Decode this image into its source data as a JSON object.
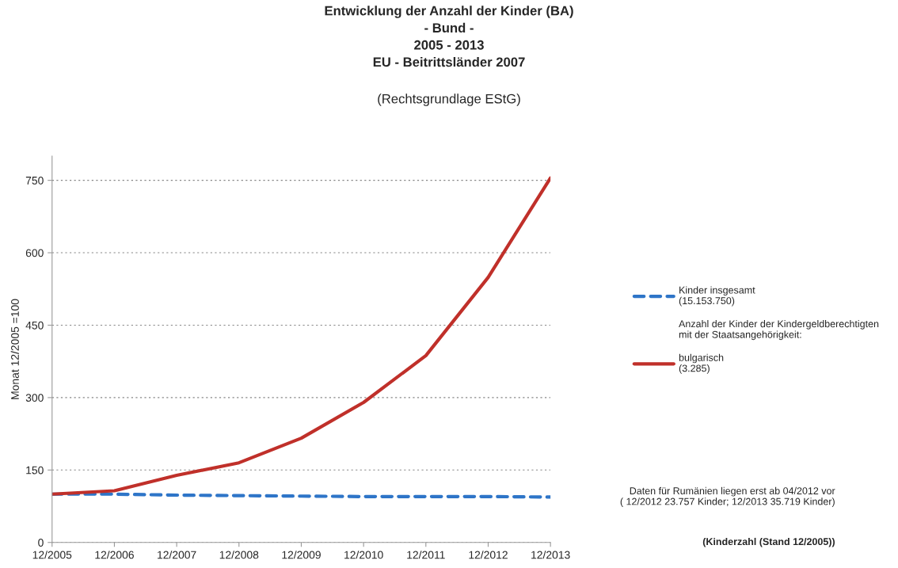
{
  "chart_data": {
    "type": "line",
    "title": "Entwicklung der Anzahl der Kinder (BA)\n- Bund -\n2005 - 2013\nEU - Beitrittsländer 2007",
    "subtitle": "(Rechtsgrundlage EStG)",
    "ylabel": "Monat 12/2005 =100",
    "categories": [
      "12/2005",
      "12/2006",
      "12/2007",
      "12/2008",
      "12/2009",
      "12/2010",
      "12/2011",
      "12/2012",
      "12/2013"
    ],
    "series": [
      {
        "name": "Kinder insgesamt\n(15.153.750)",
        "color": "#2e75c8",
        "line_style": "dashed",
        "values": [
          100,
          100,
          98,
          97,
          96,
          95,
          95,
          95,
          94
        ]
      },
      {
        "name": "bulgarisch\n(3.285)",
        "color": "#c0302a",
        "line_style": "solid",
        "values": [
          100,
          107,
          139,
          165,
          216,
          290,
          387,
          549,
          755
        ]
      }
    ],
    "ylim": [
      0,
      800
    ],
    "yticks": [
      0,
      150,
      300,
      450,
      600,
      750
    ],
    "grid": "y",
    "legend": "right",
    "marker": "none",
    "annotations": [
      "Anzahl der Kinder der Kindergeldberechtigten\nmit der Staatsangehörigkeit:",
      "Daten für Rumänien liegen erst ab 04/2012 vor\n( 12/2012 23.757 Kinder; 12/2013 35.719 Kinder)",
      "(Kinderzahl (Stand 12/2005))"
    ]
  }
}
